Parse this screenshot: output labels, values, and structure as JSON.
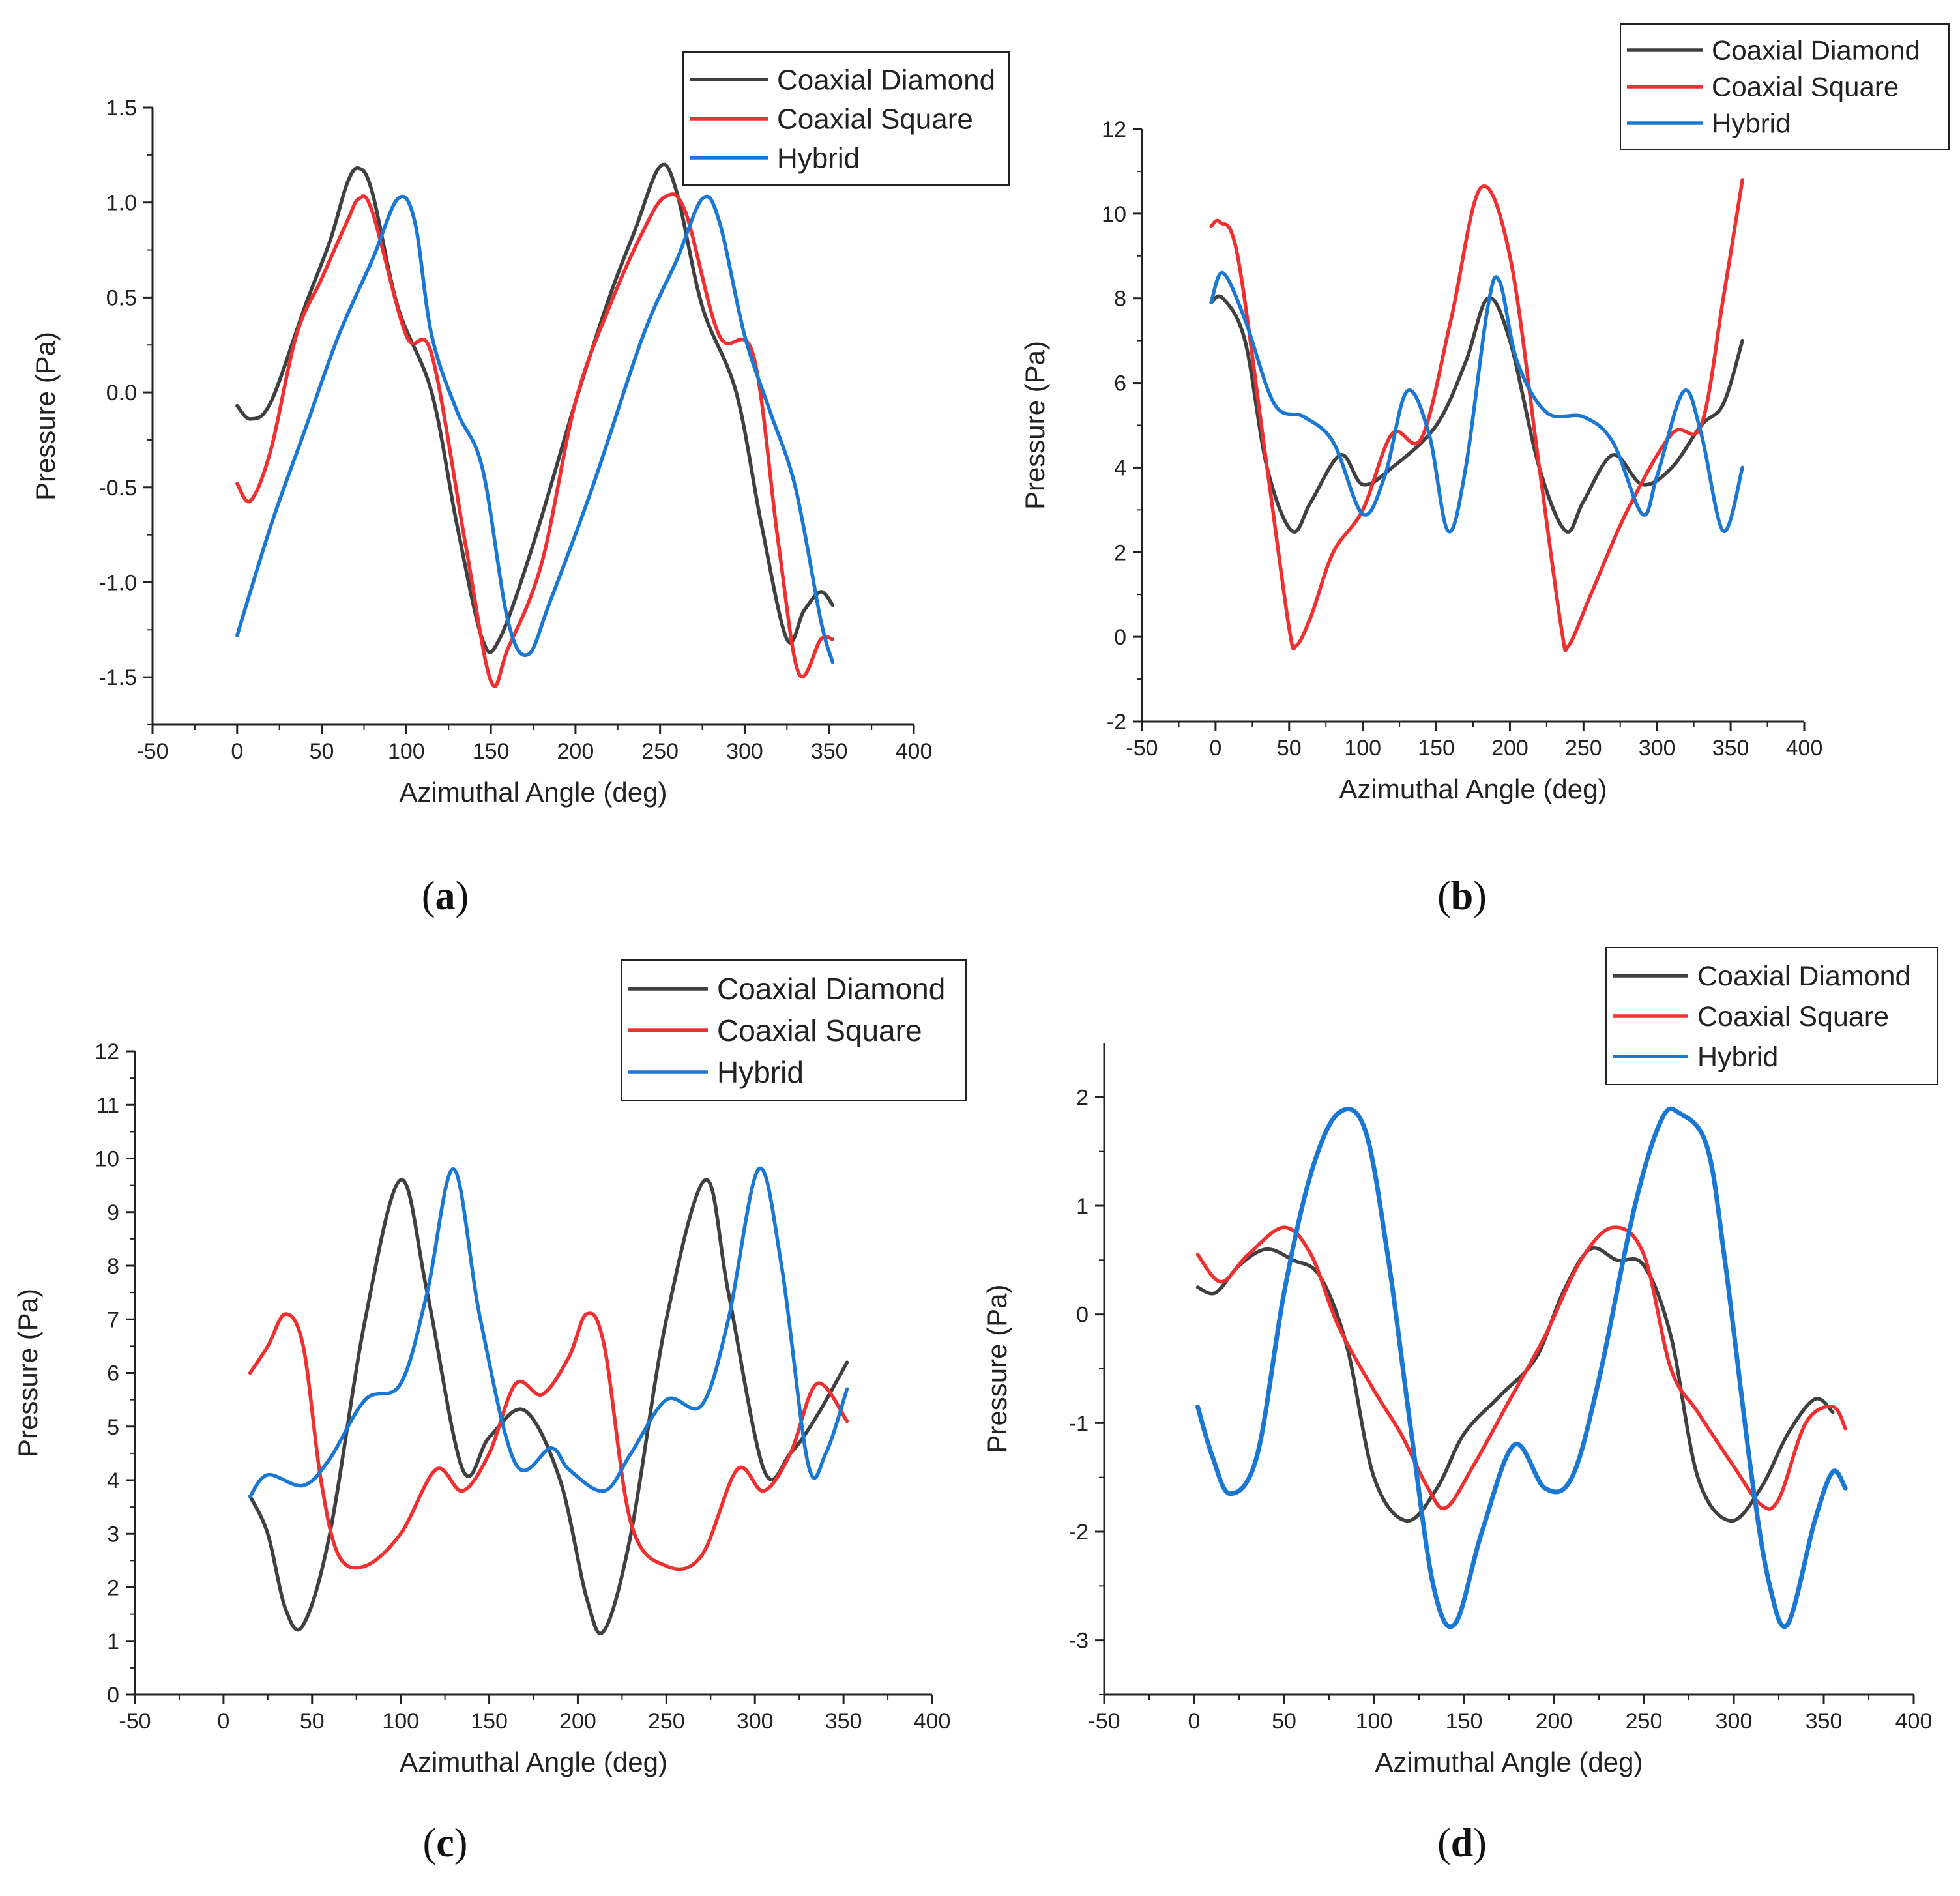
{
  "figure": {
    "captions": [
      "(a)",
      "(b)",
      "(c)",
      "(d)"
    ]
  },
  "colors": {
    "Coaxial Diamond": "#404040",
    "Coaxial Square": "#f03030",
    "Hybrid": "#1a78d2"
  },
  "chart_data": [
    {
      "panel": "a",
      "type": "line",
      "xlabel": "Azimuthal Angle (deg)",
      "ylabel": "Pressure (Pa)",
      "xlim": [
        -50,
        400
      ],
      "ylim": [
        -1.75,
        1.5
      ],
      "xticks": [
        -50,
        0,
        50,
        100,
        150,
        200,
        250,
        300,
        350,
        400
      ],
      "yticks": [
        -1.5,
        -1.0,
        -0.5,
        0.0,
        0.5,
        1.0,
        1.5
      ],
      "ytick_labels": [
        "-1.5",
        "-1.0",
        "-0.5",
        "0.0",
        "0.5",
        "1.0",
        "1.5"
      ],
      "legend": [
        "Coaxial Diamond",
        "Coaxial Square",
        "Hybrid"
      ],
      "legend_position": "top-right",
      "series": [
        {
          "name": "Coaxial Diamond",
          "x": [
            0,
            8,
            20,
            40,
            55,
            65,
            72,
            80,
            95,
            115,
            130,
            145,
            155,
            175,
            200,
            220,
            235,
            250,
            260,
            275,
            295,
            310,
            325,
            335,
            345,
            352
          ],
          "y": [
            -0.07,
            -0.14,
            -0.05,
            0.45,
            0.8,
            1.1,
            1.18,
            1.05,
            0.45,
            0.0,
            -0.7,
            -1.3,
            -1.3,
            -0.8,
            -0.05,
            0.5,
            0.85,
            1.19,
            1.05,
            0.45,
            0.0,
            -0.7,
            -1.3,
            -1.15,
            -1.05,
            -1.12
          ]
        },
        {
          "name": "Coaxial Square",
          "x": [
            0,
            8,
            20,
            35,
            50,
            65,
            72,
            80,
            100,
            115,
            135,
            150,
            160,
            180,
            200,
            220,
            240,
            253,
            265,
            285,
            305,
            320,
            332,
            345,
            352
          ],
          "y": [
            -0.48,
            -0.57,
            -0.3,
            0.3,
            0.6,
            0.9,
            1.02,
            0.95,
            0.3,
            0.2,
            -0.8,
            -1.52,
            -1.35,
            -0.9,
            -0.05,
            0.45,
            0.85,
            1.03,
            0.95,
            0.3,
            0.2,
            -0.8,
            -1.48,
            -1.3,
            -1.3
          ]
        },
        {
          "name": "Hybrid",
          "x": [
            0,
            20,
            40,
            60,
            80,
            95,
            105,
            115,
            130,
            145,
            160,
            172,
            185,
            210,
            240,
            260,
            275,
            285,
            300,
            315,
            330,
            345,
            352
          ],
          "y": [
            -1.28,
            -0.7,
            -0.2,
            0.3,
            0.7,
            1.02,
            0.9,
            0.3,
            -0.1,
            -0.4,
            -1.2,
            -1.38,
            -1.1,
            -0.5,
            0.3,
            0.7,
            1.02,
            0.9,
            0.3,
            -0.1,
            -0.5,
            -1.2,
            -1.42
          ]
        }
      ]
    },
    {
      "panel": "b",
      "type": "line",
      "xlabel": "Azimuthal Angle (deg)",
      "ylabel": "Pressure (Pa)",
      "xlim": [
        -50,
        400
      ],
      "ylim": [
        -2,
        12
      ],
      "xticks": [
        -50,
        0,
        50,
        100,
        150,
        200,
        250,
        300,
        350,
        400
      ],
      "yticks": [
        -2,
        0,
        2,
        4,
        6,
        8,
        10,
        12
      ],
      "ytick_labels": [
        "-2",
        "0",
        "2",
        "4",
        "6",
        "8",
        "10",
        "12"
      ],
      "legend": [
        "Coaxial Diamond",
        "Coaxial Square",
        "Hybrid"
      ],
      "legend_position": "top-right",
      "series": [
        {
          "name": "Coaxial Diamond",
          "x": [
            -3,
            5,
            20,
            35,
            52,
            65,
            85,
            100,
            120,
            150,
            170,
            185,
            200,
            220,
            238,
            250,
            270,
            290,
            310,
            330,
            345,
            358
          ],
          "y": [
            7.9,
            8.0,
            7.0,
            4.0,
            2.5,
            3.2,
            4.3,
            3.6,
            4.0,
            5.0,
            6.5,
            8.0,
            7.0,
            4.0,
            2.5,
            3.2,
            4.3,
            3.6,
            4.0,
            5.0,
            5.5,
            7.0
          ]
        },
        {
          "name": "Coaxial Square",
          "x": [
            -3,
            3,
            15,
            35,
            50,
            55,
            65,
            80,
            100,
            120,
            140,
            160,
            180,
            200,
            220,
            235,
            240,
            255,
            280,
            310,
            330,
            345,
            358
          ],
          "y": [
            9.7,
            9.8,
            9.0,
            4.0,
            0.2,
            -0.2,
            0.5,
            2.0,
            3.0,
            4.8,
            4.7,
            7.5,
            10.6,
            9.0,
            4.0,
            0.2,
            -0.2,
            1.0,
            3.0,
            4.8,
            5.0,
            8.0,
            10.8
          ]
        },
        {
          "name": "Hybrid",
          "x": [
            -3,
            5,
            20,
            40,
            60,
            80,
            100,
            115,
            130,
            145,
            158,
            170,
            185,
            193,
            205,
            225,
            250,
            270,
            290,
            300,
            318,
            330,
            345,
            358
          ],
          "y": [
            7.9,
            8.6,
            7.5,
            5.5,
            5.2,
            4.6,
            2.9,
            3.8,
            5.8,
            4.8,
            2.5,
            4.0,
            7.8,
            8.4,
            6.5,
            5.3,
            5.2,
            4.6,
            2.9,
            3.8,
            5.8,
            4.8,
            2.5,
            4.0
          ]
        }
      ]
    },
    {
      "panel": "c",
      "type": "line",
      "xlabel": "Azimuthal Angle (deg)",
      "ylabel": "Pressure (Pa)",
      "xlim": [
        -50,
        400
      ],
      "ylim": [
        0,
        12
      ],
      "xticks": [
        -50,
        0,
        50,
        100,
        150,
        200,
        250,
        300,
        350,
        400
      ],
      "yticks": [
        0,
        1,
        2,
        3,
        4,
        5,
        6,
        7,
        8,
        9,
        10,
        11,
        12
      ],
      "ytick_labels": [
        "0",
        "1",
        "2",
        "3",
        "4",
        "5",
        "6",
        "7",
        "8",
        "9",
        "10",
        "11",
        "12"
      ],
      "legend": [
        "Coaxial Diamond",
        "Coaxial Square",
        "Hybrid"
      ],
      "legend_position": "top-right",
      "series": [
        {
          "name": "Coaxial Diamond",
          "x": [
            15,
            25,
            35,
            45,
            60,
            80,
            100,
            115,
            135,
            150,
            170,
            190,
            205,
            215,
            230,
            250,
            272,
            285,
            305,
            320,
            335,
            352
          ],
          "y": [
            3.7,
            3.0,
            1.6,
            1.3,
            3.0,
            7.0,
            9.6,
            7.5,
            4.2,
            4.8,
            5.3,
            4.0,
            1.8,
            1.2,
            3.0,
            7.0,
            9.6,
            7.5,
            4.2,
            4.5,
            5.2,
            6.2
          ]
        },
        {
          "name": "Coaxial Square",
          "x": [
            15,
            25,
            35,
            45,
            55,
            65,
            80,
            100,
            120,
            135,
            150,
            165,
            180,
            195,
            205,
            215,
            230,
            250,
            270,
            290,
            305,
            320,
            335,
            352
          ],
          "y": [
            6.0,
            6.5,
            7.1,
            6.5,
            4.0,
            2.6,
            2.4,
            3.0,
            4.2,
            3.8,
            4.5,
            5.8,
            5.6,
            6.3,
            7.1,
            6.5,
            3.2,
            2.4,
            2.6,
            4.2,
            3.8,
            4.5,
            5.8,
            5.1
          ]
        },
        {
          "name": "Hybrid",
          "x": [
            15,
            25,
            45,
            60,
            80,
            100,
            115,
            130,
            145,
            165,
            185,
            195,
            215,
            230,
            250,
            270,
            285,
            302,
            315,
            330,
            340,
            352
          ],
          "y": [
            3.7,
            4.1,
            3.9,
            4.4,
            5.5,
            5.8,
            7.5,
            9.8,
            7.0,
            4.3,
            4.6,
            4.2,
            3.8,
            4.5,
            5.5,
            5.4,
            7.0,
            9.8,
            8.0,
            4.3,
            4.5,
            5.7
          ]
        }
      ]
    },
    {
      "panel": "d",
      "type": "line",
      "xlabel": "Azimuthal Angle (deg)",
      "ylabel": "Pressure (Pa)",
      "xlim": [
        -50,
        400
      ],
      "ylim": [
        -3.5,
        2.5
      ],
      "xticks": [
        -50,
        0,
        50,
        100,
        150,
        200,
        250,
        300,
        350,
        400
      ],
      "yticks": [
        -3,
        -2,
        -1,
        0,
        1,
        2
      ],
      "ytick_labels": [
        "-3",
        "-2",
        "-1",
        "0",
        "1",
        "2"
      ],
      "legend": [
        "Coaxial Diamond",
        "Coaxial Square",
        "Hybrid"
      ],
      "legend_position": "top-right",
      "series": [
        {
          "name": "Coaxial Diamond",
          "x": [
            2,
            12,
            25,
            40,
            55,
            70,
            85,
            100,
            118,
            135,
            150,
            170,
            190,
            205,
            220,
            235,
            250,
            265,
            280,
            298,
            315,
            330,
            345,
            355
          ],
          "y": [
            0.25,
            0.2,
            0.45,
            0.6,
            0.5,
            0.35,
            -0.3,
            -1.5,
            -1.9,
            -1.6,
            -1.1,
            -0.75,
            -0.4,
            0.2,
            0.6,
            0.5,
            0.45,
            -0.2,
            -1.5,
            -1.9,
            -1.6,
            -1.1,
            -0.78,
            -0.9
          ]
        },
        {
          "name": "Coaxial Square",
          "x": [
            2,
            15,
            30,
            50,
            65,
            80,
            100,
            115,
            130,
            140,
            155,
            175,
            195,
            215,
            233,
            250,
            265,
            280,
            300,
            315,
            325,
            340,
            355,
            362
          ],
          "y": [
            0.55,
            0.3,
            0.55,
            0.8,
            0.55,
            -0.1,
            -0.7,
            -1.1,
            -1.6,
            -1.78,
            -1.4,
            -0.8,
            -0.2,
            0.5,
            0.8,
            0.55,
            -0.5,
            -0.9,
            -1.4,
            -1.75,
            -1.7,
            -1.0,
            -0.85,
            -1.05
          ]
        },
        {
          "name": "Hybrid",
          "x": [
            2,
            10,
            20,
            35,
            50,
            65,
            80,
            95,
            108,
            120,
            133,
            145,
            160,
            178,
            195,
            210,
            225,
            245,
            260,
            270,
            285,
            295,
            310,
            320,
            330,
            345,
            355,
            362
          ],
          "y": [
            -0.85,
            -1.3,
            -1.65,
            -1.3,
            0.2,
            1.3,
            1.85,
            1.7,
            0.5,
            -1.0,
            -2.5,
            -2.85,
            -2.0,
            -1.2,
            -1.6,
            -1.5,
            -0.6,
            1.0,
            1.8,
            1.85,
            1.55,
            0.5,
            -1.5,
            -2.5,
            -2.85,
            -1.9,
            -1.45,
            -1.6
          ]
        }
      ]
    }
  ]
}
